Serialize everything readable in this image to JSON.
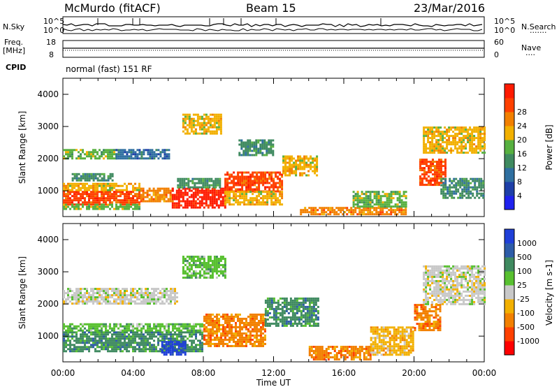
{
  "header": {
    "station": "McMurdo (fitACF)",
    "beam": "Beam 15",
    "date": "23/Mar/2016"
  },
  "top_panel": {
    "left_label": "N.Sky",
    "right_label": "N.Search",
    "right_legend": "·······",
    "left_ticks": [
      "10^5",
      "10^0"
    ],
    "right_ticks": [
      "10^5",
      "10^0"
    ]
  },
  "freq_panel": {
    "left_label_line1": "Freq.",
    "left_label_line2": "[MHz]",
    "left_ticks": [
      "18",
      "8"
    ],
    "right_ticks": [
      "60",
      "0"
    ],
    "right_label": "Nave",
    "right_legend": "····"
  },
  "cpid": {
    "label": "CPID",
    "value": "normal (fast) 151 RF"
  },
  "chart_data": [
    {
      "type": "heatmap",
      "name": "power",
      "ylabel": "Slant Range [km]",
      "xlim_hours": [
        0,
        24
      ],
      "ylim_km": [
        200,
        4500
      ],
      "yticks": [
        1000,
        2000,
        3000,
        4000
      ],
      "colorbar": {
        "label": "Power [dB]",
        "ticks": [
          "4",
          "8",
          "12",
          "16",
          "20",
          "24",
          "28"
        ],
        "colors": [
          "#1f22ee",
          "#1e3fa8",
          "#2f6fa0",
          "#3f8a60",
          "#57b040",
          "#f2b000",
          "#f28000",
          "#ff4000",
          "#ff1a00"
        ]
      },
      "regions": [
        {
          "t0": 0.0,
          "t1": 4.4,
          "r0": 600,
          "r1": 1000,
          "c": 7
        },
        {
          "t0": 0.0,
          "t1": 4.4,
          "r0": 1000,
          "r1": 1250,
          "c": 5
        },
        {
          "t0": 0.0,
          "t1": 4.4,
          "r0": 450,
          "r1": 600,
          "c": 4
        },
        {
          "t0": 0.5,
          "t1": 2.8,
          "r0": 1300,
          "r1": 1550,
          "c": 3
        },
        {
          "t0": 0.0,
          "t1": 3.0,
          "r0": 2000,
          "r1": 2300,
          "c": 4
        },
        {
          "t0": 3.0,
          "t1": 6.0,
          "r0": 2000,
          "r1": 2300,
          "c": 2
        },
        {
          "t0": 4.4,
          "t1": 6.2,
          "r0": 700,
          "r1": 1100,
          "c": 6
        },
        {
          "t0": 6.2,
          "t1": 9.2,
          "r0": 450,
          "r1": 1100,
          "c": 8
        },
        {
          "t0": 6.5,
          "t1": 9.0,
          "r0": 1100,
          "r1": 1400,
          "c": 3
        },
        {
          "t0": 9.2,
          "t1": 12.5,
          "r0": 1000,
          "r1": 1600,
          "c": 7
        },
        {
          "t0": 9.2,
          "t1": 12.5,
          "r0": 600,
          "r1": 1000,
          "c": 5
        },
        {
          "t0": 12.5,
          "t1": 14.5,
          "r0": 1500,
          "r1": 2100,
          "c": 5
        },
        {
          "t0": 10.0,
          "t1": 12.0,
          "r0": 2100,
          "r1": 2600,
          "c": 3
        },
        {
          "t0": 6.8,
          "t1": 9.0,
          "r0": 2800,
          "r1": 3400,
          "c": 5
        },
        {
          "t0": 13.5,
          "t1": 19.5,
          "r0": 250,
          "r1": 500,
          "c": 6
        },
        {
          "t0": 16.5,
          "t1": 19.5,
          "r0": 500,
          "r1": 1000,
          "c": 4
        },
        {
          "t0": 20.3,
          "t1": 21.8,
          "r0": 1200,
          "r1": 2000,
          "c": 7
        },
        {
          "t0": 20.5,
          "t1": 24.0,
          "r0": 2200,
          "r1": 3000,
          "c": 5
        },
        {
          "t0": 21.5,
          "t1": 24.0,
          "r0": 800,
          "r1": 1400,
          "c": 3
        }
      ]
    },
    {
      "type": "heatmap",
      "name": "velocity",
      "ylabel": "Slant Range [km]",
      "xlabel": "Time UT",
      "xticks": [
        "00:00",
        "04:00",
        "08:00",
        "12:00",
        "16:00",
        "20:00",
        "00:00"
      ],
      "xlim_hours": [
        0,
        24
      ],
      "ylim_km": [
        200,
        4500
      ],
      "yticks": [
        1000,
        2000,
        3000,
        4000
      ],
      "colorbar": {
        "label": "Velocity [m s-1]",
        "ticks": [
          "1000",
          "500",
          "100",
          "25",
          "-25",
          "-100",
          "-500",
          "-1000"
        ],
        "colors": [
          "#1f3fd8",
          "#2d5ca8",
          "#3f8a60",
          "#58c030",
          "#c8c8c8",
          "#f2b000",
          "#f28000",
          "#ff4000",
          "#ff0000"
        ]
      },
      "regions": [
        {
          "t0": 0.0,
          "t1": 8.0,
          "r0": 500,
          "r1": 1150,
          "c": 2
        },
        {
          "t0": 0.0,
          "t1": 8.0,
          "r0": 1150,
          "r1": 1400,
          "c": 3
        },
        {
          "t0": 5.6,
          "t1": 7.0,
          "r0": 450,
          "r1": 850,
          "c": 0
        },
        {
          "t0": 8.0,
          "t1": 11.5,
          "r0": 700,
          "r1": 1700,
          "c": 6
        },
        {
          "t0": 11.5,
          "t1": 14.5,
          "r0": 1300,
          "r1": 2200,
          "c": 2
        },
        {
          "t0": 0.0,
          "t1": 6.5,
          "r0": 2000,
          "r1": 2500,
          "c": 4
        },
        {
          "t0": 6.8,
          "t1": 9.2,
          "r0": 2800,
          "r1": 3500,
          "c": 3
        },
        {
          "t0": 14.0,
          "t1": 17.5,
          "r0": 250,
          "r1": 700,
          "c": 6
        },
        {
          "t0": 17.5,
          "t1": 20.0,
          "r0": 400,
          "r1": 1300,
          "c": 5
        },
        {
          "t0": 20.5,
          "t1": 24.0,
          "r0": 2000,
          "r1": 3200,
          "c": 4
        },
        {
          "t0": 20.0,
          "t1": 21.5,
          "r0": 1200,
          "r1": 2000,
          "c": 6
        }
      ]
    }
  ]
}
